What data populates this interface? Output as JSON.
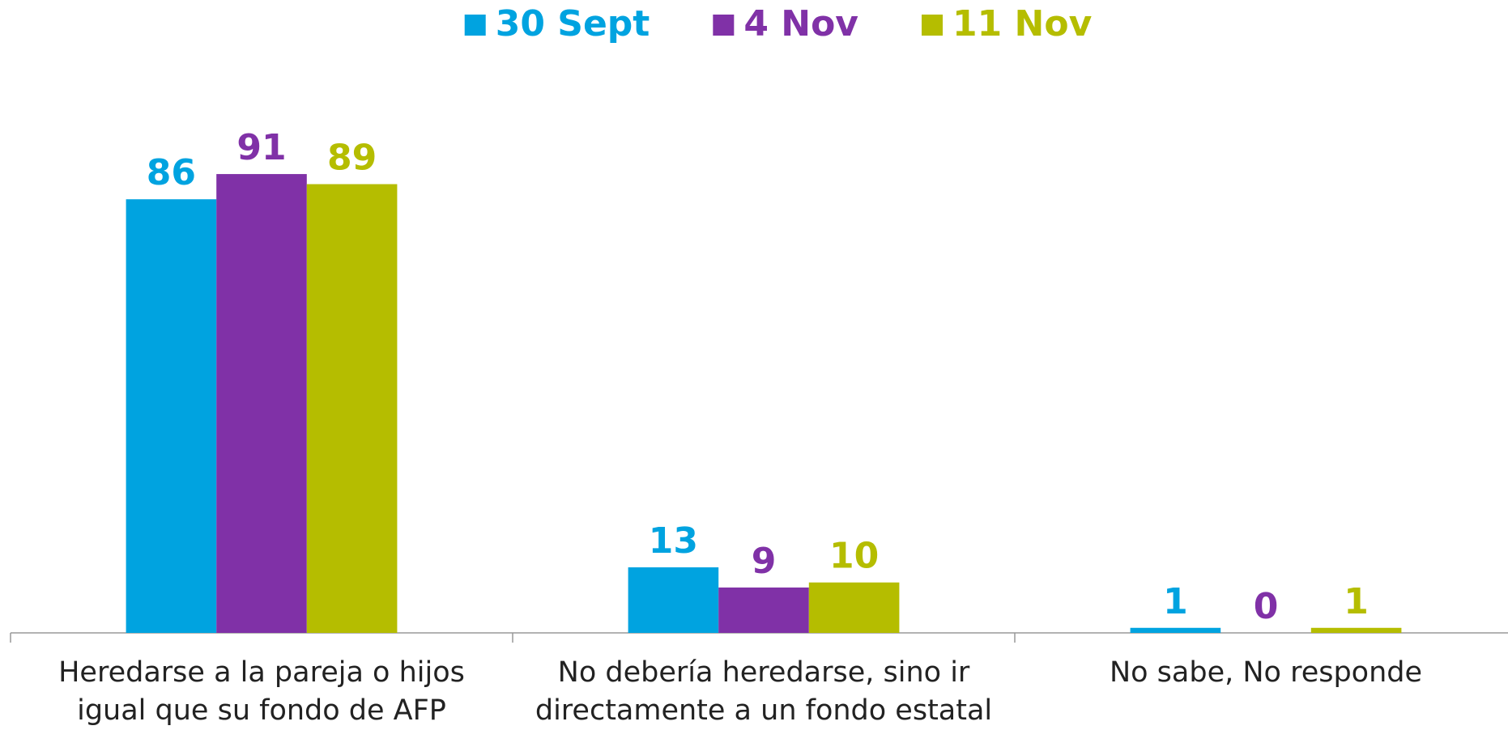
{
  "chart_data": {
    "type": "bar",
    "categories": [
      "Heredarse a la pareja o hijos igual que su fondo de AFP",
      "No debería heredarse, sino ir directamente a un fondo estatal",
      "No sabe, No responde"
    ],
    "series": [
      {
        "name": "30 Sept",
        "color": "#00a3e0",
        "values": [
          86,
          13,
          1
        ]
      },
      {
        "name": "4 Nov",
        "color": "#8031a7",
        "values": [
          91,
          9,
          0
        ]
      },
      {
        "name": "11 Nov",
        "color": "#b5bd00",
        "values": [
          89,
          10,
          1
        ]
      }
    ],
    "ylim": [
      0,
      100
    ],
    "legend": "top"
  }
}
